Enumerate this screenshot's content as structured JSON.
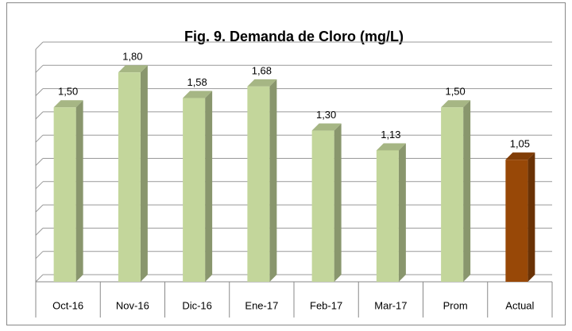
{
  "chart_data": {
    "type": "bar3d",
    "title": "Fig. 9. Demanda de Cloro (mg/L)",
    "categories": [
      "Oct-16",
      "Nov-16",
      "Dic-16",
      "Ene-17",
      "Feb-17",
      "Mar-17",
      "Prom",
      "Actual"
    ],
    "values": [
      1.5,
      1.8,
      1.58,
      1.68,
      1.3,
      1.13,
      1.5,
      1.05
    ],
    "value_labels": [
      "1,50",
      "1,80",
      "1,58",
      "1,68",
      "1,30",
      "1,13",
      "1,50",
      "1,05"
    ],
    "colors": [
      "#c3d69b",
      "#c3d69b",
      "#c3d69b",
      "#c3d69b",
      "#c3d69b",
      "#c3d69b",
      "#c3d69b",
      "#984807"
    ],
    "ylim": [
      0,
      2
    ],
    "yticks": [
      0,
      0.2,
      0.4,
      0.6,
      0.8,
      1,
      1.2,
      1.4,
      1.6,
      1.8,
      2
    ],
    "grid": true
  }
}
